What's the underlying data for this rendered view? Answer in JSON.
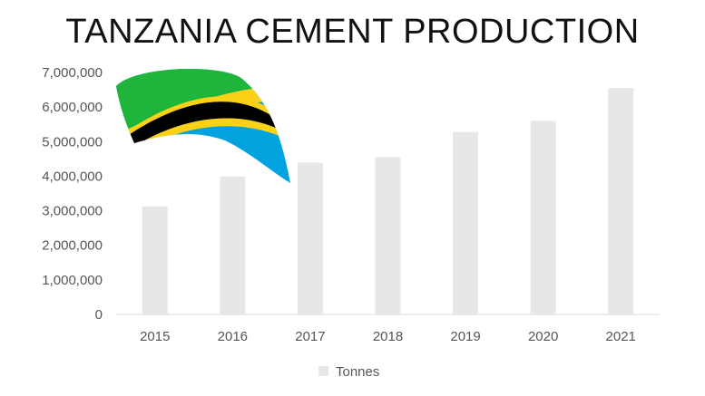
{
  "chart_data": {
    "type": "bar",
    "title": "TANZANIA CEMENT PRODUCTION",
    "categories": [
      "2015",
      "2016",
      "2017",
      "2018",
      "2019",
      "2020",
      "2021"
    ],
    "series": [
      {
        "name": "Tonnes",
        "values": [
          3130000,
          3990000,
          4390000,
          4550000,
          5280000,
          5600000,
          6550000
        ]
      }
    ],
    "ylim": [
      0,
      7000000
    ],
    "yticks": [
      "0",
      "1,000,000",
      "2,000,000",
      "3,000,000",
      "4,000,000",
      "5,000,000",
      "6,000,000",
      "7,000,000"
    ],
    "grid": false,
    "legend": "bottom",
    "colors": {
      "bar": "#e7e7e7",
      "axis": "#d9d9d9",
      "flag_green": "#1eb53a",
      "flag_yellow": "#fcd116",
      "flag_black": "#000000",
      "flag_blue": "#00a3dd"
    }
  },
  "decoration": {
    "icon": "tanzania-flag-brushstroke-icon"
  }
}
